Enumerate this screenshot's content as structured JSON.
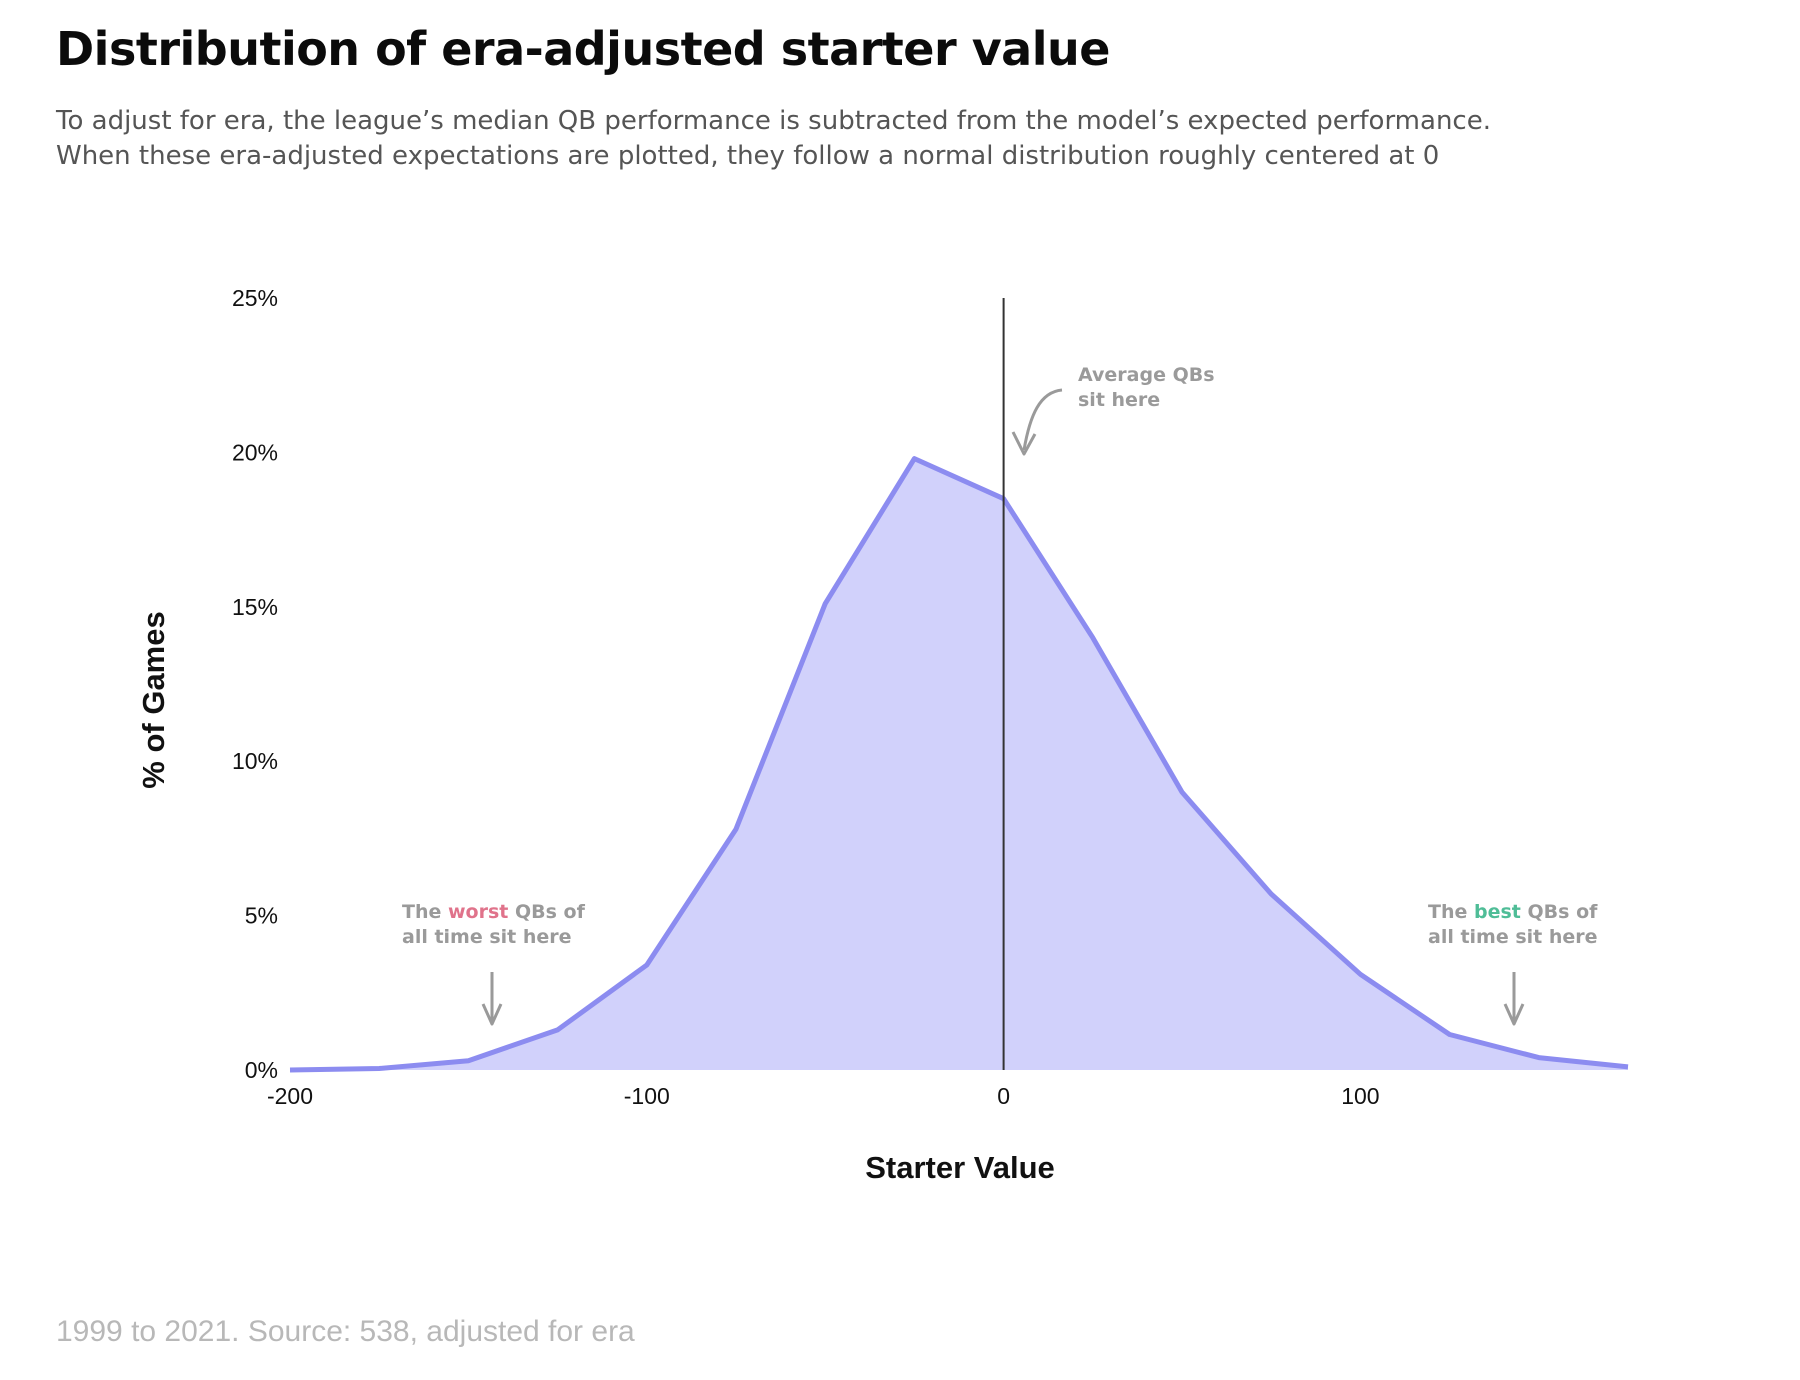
{
  "page": {
    "title": "Distribution of era-adjusted starter value",
    "subtitle_lines": [
      "To adjust for era, the league’s median QB performance is subtracted from the model’s expected performance.",
      "When these era-adjusted expectations are plotted, they follow a normal distribution roughly centered at 0"
    ],
    "source": "1999 to 2021. Source: 538, adjusted for era"
  },
  "colors": {
    "fill": "#d1d1fb",
    "line": "#8c8cf0",
    "zero_line": "#333333",
    "annotation": "#9a9a9a",
    "worst": "#e0738b",
    "best": "#4fbd97"
  },
  "chart_data": {
    "type": "area",
    "xlabel": "Starter Value",
    "ylabel": "% of Games",
    "xlim": [
      -200,
      175
    ],
    "ylim": [
      0,
      25
    ],
    "x_ticks": [
      -200,
      -100,
      0,
      100
    ],
    "x_tick_labels": [
      "-200",
      "-100",
      "0",
      "100"
    ],
    "y_ticks": [
      0,
      5,
      10,
      15,
      20,
      25
    ],
    "y_tick_labels": [
      "0%",
      "5%",
      "10%",
      "15%",
      "20%",
      "25%"
    ],
    "grid": false,
    "legend": "none",
    "series": [
      {
        "x": [
          -200,
          -175,
          -150,
          -125,
          -100,
          -75,
          -50,
          -25,
          0,
          25,
          50,
          75,
          100,
          125,
          150,
          175
        ],
        "y": [
          0.0,
          0.05,
          0.3,
          1.3,
          3.4,
          7.8,
          15.1,
          19.8,
          18.5,
          14.0,
          9.0,
          5.7,
          3.1,
          1.15,
          0.4,
          0.1
        ]
      }
    ],
    "reference_line": {
      "x": 0
    },
    "annotations": [
      {
        "id": "average",
        "lines": [
          [
            {
              "text": "Average QBs",
              "tone": "annotation"
            }
          ],
          [
            {
              "text": "sit here",
              "tone": "annotation"
            }
          ]
        ]
      },
      {
        "id": "worst",
        "lines": [
          [
            {
              "text": "The ",
              "tone": "annotation"
            },
            {
              "text": "worst",
              "tone": "worst"
            },
            {
              "text": " QBs of",
              "tone": "annotation"
            }
          ],
          [
            {
              "text": "all time sit here",
              "tone": "annotation"
            }
          ]
        ]
      },
      {
        "id": "best",
        "lines": [
          [
            {
              "text": "The ",
              "tone": "annotation"
            },
            {
              "text": "best",
              "tone": "best"
            },
            {
              "text": " QBs of",
              "tone": "annotation"
            }
          ],
          [
            {
              "text": "all time sit here",
              "tone": "annotation"
            }
          ]
        ]
      }
    ]
  }
}
